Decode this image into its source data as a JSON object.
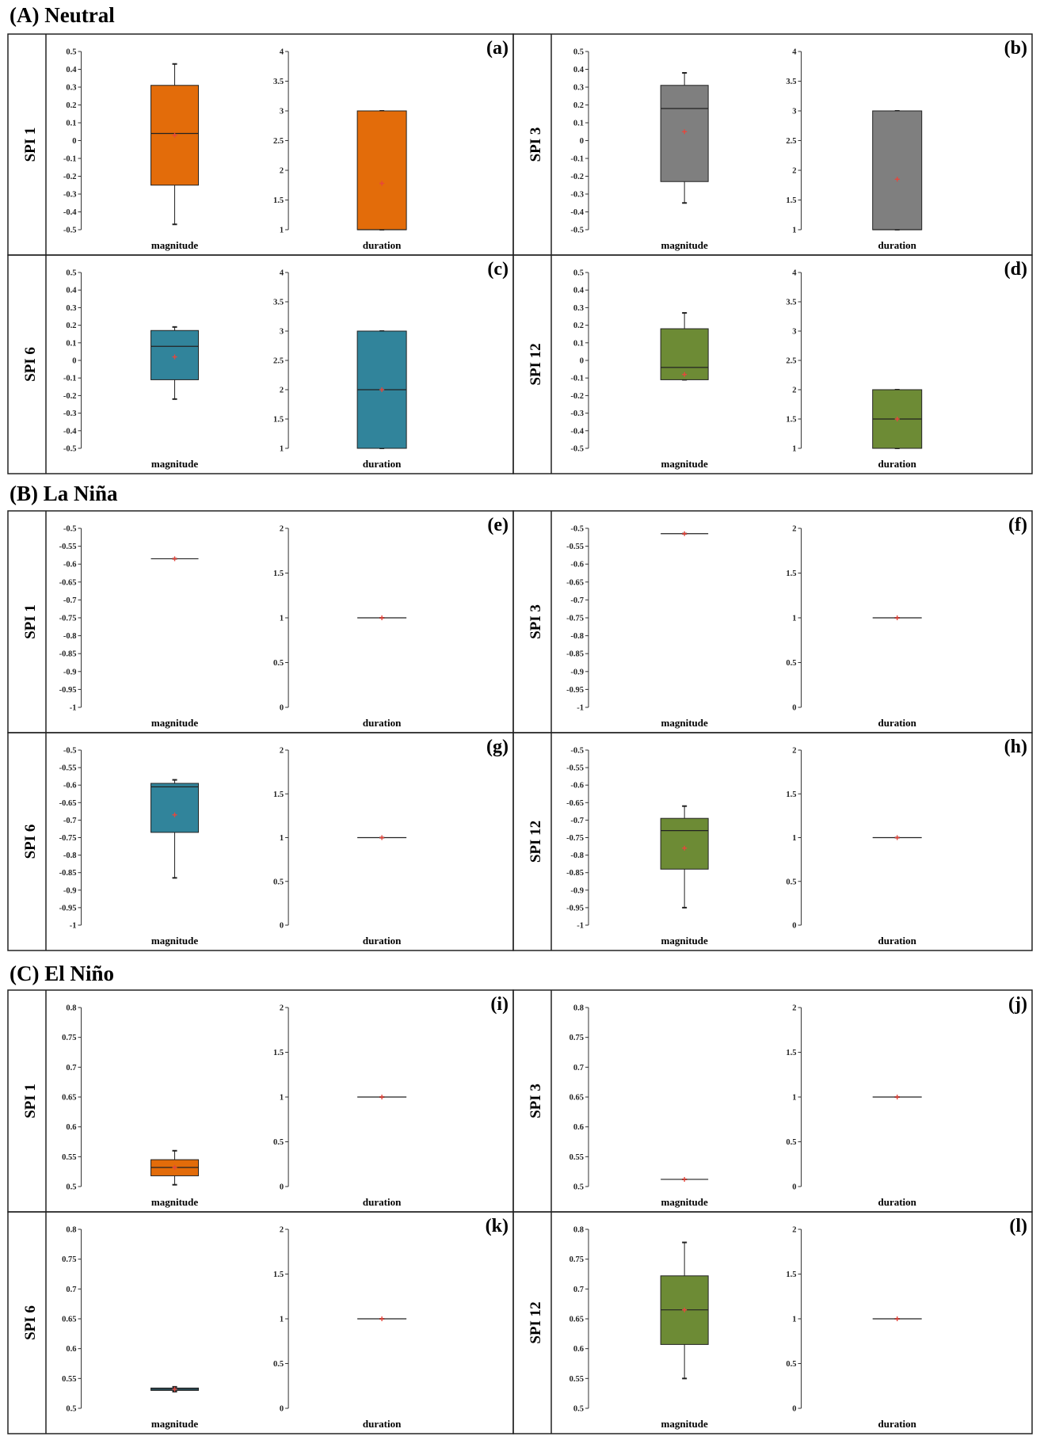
{
  "colors": {
    "orange": "#e36c0a",
    "gray": "#7f7f7f",
    "teal": "#31849b",
    "green": "#6d8b35",
    "mean": "#e8463c"
  },
  "sections": [
    {
      "heading": "(A) Neutral",
      "panels": [
        {
          "letter": "(a)",
          "spi": "SPI 1",
          "color": "orange"
        },
        {
          "letter": "(b)",
          "spi": "SPI 3",
          "color": "gray"
        },
        {
          "letter": "(c)",
          "spi": "SPI 6",
          "color": "teal"
        },
        {
          "letter": "(d)",
          "spi": "SPI 12",
          "color": "green"
        }
      ]
    },
    {
      "heading": "(B) La Niña",
      "panels": [
        {
          "letter": "(e)",
          "spi": "SPI 1",
          "color": "orange"
        },
        {
          "letter": "(f)",
          "spi": "SPI 3",
          "color": "gray"
        },
        {
          "letter": "(g)",
          "spi": "SPI 6",
          "color": "teal"
        },
        {
          "letter": "(h)",
          "spi": "SPI 12",
          "color": "green"
        }
      ]
    },
    {
      "heading": "(C) El Niño",
      "panels": [
        {
          "letter": "(i)",
          "spi": "SPI 1",
          "color": "orange"
        },
        {
          "letter": "(j)",
          "spi": "SPI 3",
          "color": "gray"
        },
        {
          "letter": "(k)",
          "spi": "SPI 6",
          "color": "teal"
        },
        {
          "letter": "(l)",
          "spi": "SPI 12",
          "color": "green"
        }
      ]
    }
  ],
  "chart_data": [
    {
      "panel": "(a)",
      "type": "box",
      "plots": [
        {
          "category": "magnitude",
          "ylim": [
            -0.5,
            0.5
          ],
          "ticks": [
            "0.5",
            "0.4",
            "0.3",
            "0.2",
            "0.1",
            "0",
            "-0.1",
            "-0.2",
            "-0.3",
            "-0.4",
            "-0.5"
          ],
          "min": -0.47,
          "q1": -0.25,
          "median": 0.04,
          "q3": 0.31,
          "max": 0.43,
          "mean": 0.03
        },
        {
          "category": "duration",
          "ylim": [
            1,
            4
          ],
          "ticks": [
            "4",
            "3.5",
            "3",
            "2.5",
            "2",
            "1.5",
            "1"
          ],
          "min": 1,
          "q1": 1,
          "median": 1,
          "q3": 3,
          "max": 3,
          "mean": 1.78
        }
      ]
    },
    {
      "panel": "(b)",
      "type": "box",
      "plots": [
        {
          "category": "magnitude",
          "ylim": [
            -0.5,
            0.5
          ],
          "ticks": [
            "0.5",
            "0.4",
            "0.3",
            "0.2",
            "0.1",
            "0",
            "-0.1",
            "-0.2",
            "-0.3",
            "-0.4",
            "-0.5"
          ],
          "min": -0.35,
          "q1": -0.23,
          "median": 0.18,
          "q3": 0.31,
          "max": 0.38,
          "mean": 0.05
        },
        {
          "category": "duration",
          "ylim": [
            1,
            4
          ],
          "ticks": [
            "4",
            "3.5",
            "3",
            "2.5",
            "2",
            "1.5",
            "1"
          ],
          "min": 1,
          "q1": 1,
          "median": 1,
          "q3": 3,
          "max": 3,
          "mean": 1.85
        }
      ]
    },
    {
      "panel": "(c)",
      "type": "box",
      "plots": [
        {
          "category": "magnitude",
          "ylim": [
            -0.5,
            0.5
          ],
          "ticks": [
            "0.5",
            "0.4",
            "0.3",
            "0.2",
            "0.1",
            "0",
            "-0.1",
            "-0.2",
            "-0.3",
            "-0.4",
            "-0.5"
          ],
          "min": -0.22,
          "q1": -0.11,
          "median": 0.08,
          "q3": 0.17,
          "max": 0.19,
          "mean": 0.02
        },
        {
          "category": "duration",
          "ylim": [
            1,
            4
          ],
          "ticks": [
            "4",
            "3.5",
            "3",
            "2.5",
            "2",
            "1.5",
            "1"
          ],
          "min": 1,
          "q1": 1,
          "median": 2,
          "q3": 3,
          "max": 3,
          "mean": 2.0
        }
      ]
    },
    {
      "panel": "(d)",
      "type": "box",
      "plots": [
        {
          "category": "magnitude",
          "ylim": [
            -0.5,
            0.5
          ],
          "ticks": [
            "0.5",
            "0.4",
            "0.3",
            "0.2",
            "0.1",
            "0",
            "-0.1",
            "-0.2",
            "-0.3",
            "-0.4",
            "-0.5"
          ],
          "min": -0.11,
          "q1": -0.11,
          "median": -0.04,
          "q3": 0.18,
          "max": 0.27,
          "mean": -0.08
        },
        {
          "category": "duration",
          "ylim": [
            1,
            4
          ],
          "ticks": [
            "4",
            "3.5",
            "3",
            "2.5",
            "2",
            "1.5",
            "1"
          ],
          "min": 1,
          "q1": 1,
          "median": 1.5,
          "q3": 2,
          "max": 2,
          "mean": 1.5
        }
      ]
    },
    {
      "panel": "(e)",
      "type": "box",
      "plots": [
        {
          "category": "magnitude",
          "ylim": [
            -1,
            -0.5
          ],
          "ticks": [
            "-0.5",
            "-0.55",
            "-0.6",
            "-0.65",
            "-0.7",
            "-0.75",
            "-0.8",
            "-0.85",
            "-0.9",
            "-0.95",
            "-1"
          ],
          "min": -0.585,
          "q1": -0.585,
          "median": -0.585,
          "q3": -0.585,
          "max": -0.585,
          "mean": -0.585
        },
        {
          "category": "duration",
          "ylim": [
            0,
            2
          ],
          "ticks": [
            "2",
            "1.5",
            "1",
            "0.5",
            "0"
          ],
          "min": 1,
          "q1": 1,
          "median": 1,
          "q3": 1,
          "max": 1,
          "mean": 1
        }
      ]
    },
    {
      "panel": "(f)",
      "type": "box",
      "plots": [
        {
          "category": "magnitude",
          "ylim": [
            -1,
            -0.5
          ],
          "ticks": [
            "-0.5",
            "-0.55",
            "-0.6",
            "-0.65",
            "-0.7",
            "-0.75",
            "-0.8",
            "-0.85",
            "-0.9",
            "-0.95",
            "-1"
          ],
          "min": -0.515,
          "q1": -0.515,
          "median": -0.515,
          "q3": -0.515,
          "max": -0.515,
          "mean": -0.515
        },
        {
          "category": "duration",
          "ylim": [
            0,
            2
          ],
          "ticks": [
            "2",
            "1.5",
            "1",
            "0.5",
            "0"
          ],
          "min": 1,
          "q1": 1,
          "median": 1,
          "q3": 1,
          "max": 1,
          "mean": 1
        }
      ]
    },
    {
      "panel": "(g)",
      "type": "box",
      "plots": [
        {
          "category": "magnitude",
          "ylim": [
            -1,
            -0.5
          ],
          "ticks": [
            "-0.5",
            "-0.55",
            "-0.6",
            "-0.65",
            "-0.7",
            "-0.75",
            "-0.8",
            "-0.85",
            "-0.9",
            "-0.95",
            "-1"
          ],
          "min": -0.865,
          "q1": -0.735,
          "median": -0.605,
          "q3": -0.595,
          "max": -0.585,
          "mean": -0.685
        },
        {
          "category": "duration",
          "ylim": [
            0,
            2
          ],
          "ticks": [
            "2",
            "1.5",
            "1",
            "0.5",
            "0"
          ],
          "min": 1,
          "q1": 1,
          "median": 1,
          "q3": 1,
          "max": 1,
          "mean": 1
        }
      ]
    },
    {
      "panel": "(h)",
      "type": "box",
      "plots": [
        {
          "category": "magnitude",
          "ylim": [
            -1,
            -0.5
          ],
          "ticks": [
            "-0.5",
            "-0.55",
            "-0.6",
            "-0.65",
            "-0.7",
            "-0.75",
            "-0.8",
            "-0.85",
            "-0.9",
            "-0.95",
            "-1"
          ],
          "min": -0.95,
          "q1": -0.84,
          "median": -0.73,
          "q3": -0.695,
          "max": -0.66,
          "mean": -0.78
        },
        {
          "category": "duration",
          "ylim": [
            0,
            2
          ],
          "ticks": [
            "2",
            "1.5",
            "1",
            "0.5",
            "0"
          ],
          "min": 1,
          "q1": 1,
          "median": 1,
          "q3": 1,
          "max": 1,
          "mean": 1
        }
      ]
    },
    {
      "panel": "(i)",
      "type": "box",
      "plots": [
        {
          "category": "magnitude",
          "ylim": [
            0.5,
            0.8
          ],
          "ticks": [
            "0.8",
            "0.75",
            "0.7",
            "0.65",
            "0.6",
            "0.55",
            "0.5"
          ],
          "min": 0.503,
          "q1": 0.518,
          "median": 0.532,
          "q3": 0.545,
          "max": 0.56,
          "mean": 0.532
        },
        {
          "category": "duration",
          "ylim": [
            0,
            2
          ],
          "ticks": [
            "2",
            "1.5",
            "1",
            "0.5",
            "0"
          ],
          "min": 1,
          "q1": 1,
          "median": 1,
          "q3": 1,
          "max": 1,
          "mean": 1
        }
      ]
    },
    {
      "panel": "(j)",
      "type": "box",
      "plots": [
        {
          "category": "magnitude",
          "ylim": [
            0.5,
            0.8
          ],
          "ticks": [
            "0.8",
            "0.75",
            "0.7",
            "0.65",
            "0.6",
            "0.55",
            "0.5"
          ],
          "min": 0.512,
          "q1": 0.512,
          "median": 0.512,
          "q3": 0.512,
          "max": 0.512,
          "mean": 0.512
        },
        {
          "category": "duration",
          "ylim": [
            0,
            2
          ],
          "ticks": [
            "2",
            "1.5",
            "1",
            "0.5",
            "0"
          ],
          "min": 1,
          "q1": 1,
          "median": 1,
          "q3": 1,
          "max": 1,
          "mean": 1
        }
      ]
    },
    {
      "panel": "(k)",
      "type": "box",
      "plots": [
        {
          "category": "magnitude",
          "ylim": [
            0.5,
            0.8
          ],
          "ticks": [
            "0.8",
            "0.75",
            "0.7",
            "0.65",
            "0.6",
            "0.55",
            "0.5"
          ],
          "min": 0.528,
          "q1": 0.53,
          "median": 0.532,
          "q3": 0.534,
          "max": 0.536,
          "mean": 0.532
        },
        {
          "category": "duration",
          "ylim": [
            0,
            2
          ],
          "ticks": [
            "2",
            "1.5",
            "1",
            "0.5",
            "0"
          ],
          "min": 1,
          "q1": 1,
          "median": 1,
          "q3": 1,
          "max": 1,
          "mean": 1
        }
      ]
    },
    {
      "panel": "(l)",
      "type": "box",
      "plots": [
        {
          "category": "magnitude",
          "ylim": [
            0.5,
            0.8
          ],
          "ticks": [
            "0.8",
            "0.75",
            "0.7",
            "0.65",
            "0.6",
            "0.55",
            "0.5"
          ],
          "min": 0.55,
          "q1": 0.607,
          "median": 0.665,
          "q3": 0.722,
          "max": 0.778,
          "mean": 0.665
        },
        {
          "category": "duration",
          "ylim": [
            0,
            2
          ],
          "ticks": [
            "2",
            "1.5",
            "1",
            "0.5",
            "0"
          ],
          "min": 1,
          "q1": 1,
          "median": 1,
          "q3": 1,
          "max": 1,
          "mean": 1
        }
      ]
    }
  ]
}
